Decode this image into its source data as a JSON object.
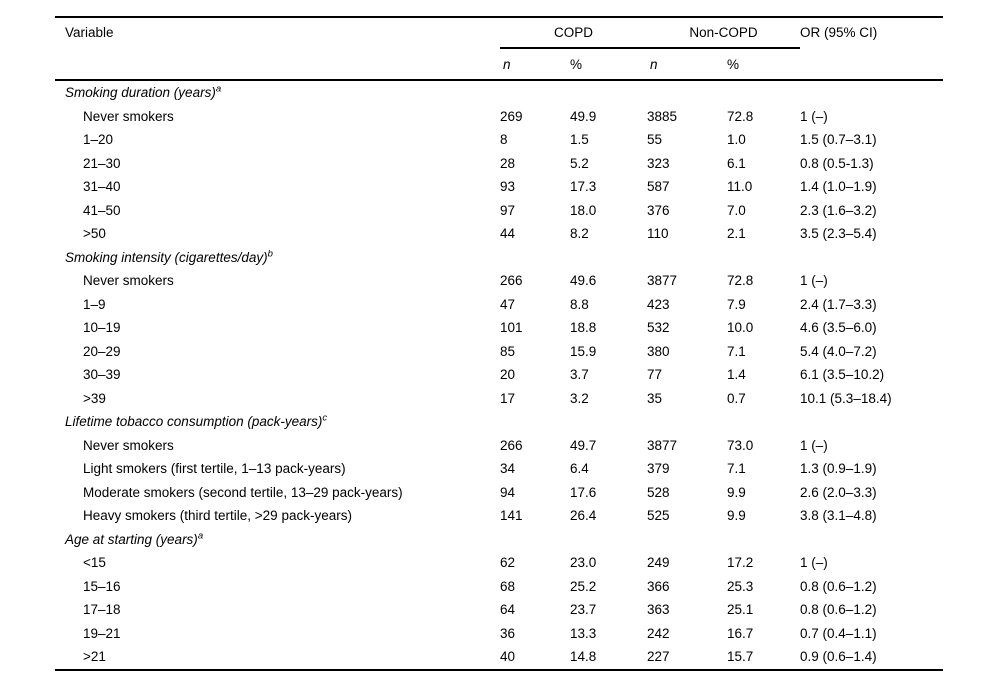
{
  "page": {
    "background_color": "#ffffff",
    "text_color": "#000000"
  },
  "table": {
    "headers": {
      "variable": "Variable",
      "group_copd": "COPD",
      "group_non_copd": "Non-COPD",
      "or_ci": "OR (95% CI)",
      "sub_n": "n",
      "sub_pct": "%"
    },
    "columns": [
      "Variable",
      "COPD n",
      "COPD %",
      "Non-COPD n",
      "Non-COPD %",
      "OR (95% CI)"
    ],
    "sections": [
      {
        "title": "Smoking duration (years)",
        "sup": "a",
        "rows": [
          [
            "Never smokers",
            "269",
            "49.9",
            "3885",
            "72.8",
            "1 (–)"
          ],
          [
            "1–20",
            "8",
            "1.5",
            "55",
            "1.0",
            "1.5 (0.7–3.1)"
          ],
          [
            "21–30",
            "28",
            "5.2",
            "323",
            "6.1",
            "0.8 (0.5-1.3)"
          ],
          [
            "31–40",
            "93",
            "17.3",
            "587",
            "11.0",
            "1.4 (1.0–1.9)"
          ],
          [
            "41–50",
            "97",
            "18.0",
            "376",
            "7.0",
            "2.3 (1.6–3.2)"
          ],
          [
            ">50",
            "44",
            "8.2",
            "110",
            "2.1",
            "3.5 (2.3–5.4)"
          ]
        ]
      },
      {
        "title": "Smoking intensity (cigarettes/day)",
        "sup": "b",
        "rows": [
          [
            "Never smokers",
            "266",
            "49.6",
            "3877",
            "72.8",
            "1 (–)"
          ],
          [
            "1–9",
            "47",
            "8.8",
            "423",
            "7.9",
            "2.4 (1.7–3.3)"
          ],
          [
            "10–19",
            "101",
            "18.8",
            "532",
            "10.0",
            "4.6 (3.5–6.0)"
          ],
          [
            "20–29",
            "85",
            "15.9",
            "380",
            "7.1",
            "5.4 (4.0–7.2)"
          ],
          [
            "30–39",
            "20",
            "3.7",
            "77",
            "1.4",
            "6.1 (3.5–10.2)"
          ],
          [
            ">39",
            "17",
            "3.2",
            "35",
            "0.7",
            "10.1 (5.3–18.4)"
          ]
        ]
      },
      {
        "title": "Lifetime tobacco consumption (pack-years)",
        "sup": "c",
        "rows": [
          [
            "Never smokers",
            "266",
            "49.7",
            "3877",
            "73.0",
            "1 (–)"
          ],
          [
            "Light smokers (first tertile, 1–13 pack-years)",
            "34",
            "6.4",
            "379",
            "7.1",
            "1.3 (0.9–1.9)"
          ],
          [
            "Moderate smokers (second tertile, 13–29 pack-years)",
            "94",
            "17.6",
            "528",
            "9.9",
            "2.6 (2.0–3.3)"
          ],
          [
            "Heavy smokers (third tertile, >29 pack-years)",
            "141",
            "26.4",
            "525",
            "9.9",
            "3.8 (3.1–4.8)"
          ]
        ]
      },
      {
        "title": "Age at starting (years)",
        "sup": "a",
        "rows": [
          [
            "<15",
            "62",
            "23.0",
            "249",
            "17.2",
            "1 (–)"
          ],
          [
            "15–16",
            "68",
            "25.2",
            "366",
            "25.3",
            "0.8 (0.6–1.2)"
          ],
          [
            "17–18",
            "64",
            "23.7",
            "363",
            "25.1",
            "0.8 (0.6–1.2)"
          ],
          [
            "19–21",
            "36",
            "13.3",
            "242",
            "16.7",
            "0.7 (0.4–1.1)"
          ],
          [
            ">21",
            "40",
            "14.8",
            "227",
            "15.7",
            "0.9 (0.6–1.4)"
          ]
        ]
      }
    ]
  }
}
